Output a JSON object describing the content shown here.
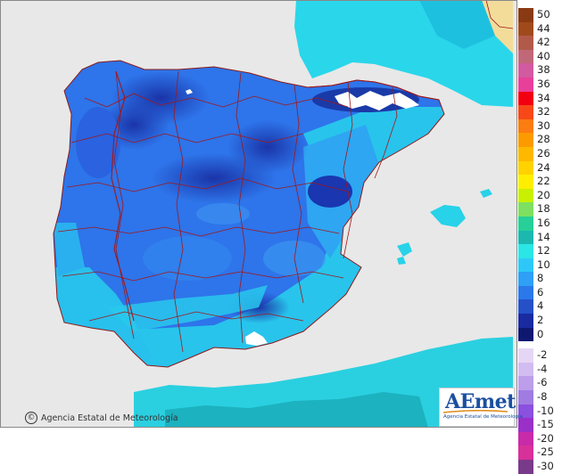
{
  "legend": {
    "positive": [
      {
        "label": "50",
        "color": "#8a3a12"
      },
      {
        "label": "44",
        "color": "#a04a1c"
      },
      {
        "label": "42",
        "color": "#b25a4a"
      },
      {
        "label": "40",
        "color": "#c06878"
      },
      {
        "label": "38",
        "color": "#d25aa0"
      },
      {
        "label": "36",
        "color": "#e8409a"
      },
      {
        "label": "34",
        "color": "#f20010"
      },
      {
        "label": "32",
        "color": "#f84818"
      },
      {
        "label": "30",
        "color": "#fb7c10"
      },
      {
        "label": "28",
        "color": "#fd9a00"
      },
      {
        "label": "26",
        "color": "#ffb800"
      },
      {
        "label": "24",
        "color": "#ffd200"
      },
      {
        "label": "22",
        "color": "#ffee00"
      },
      {
        "label": "20",
        "color": "#c8f000"
      },
      {
        "label": "18",
        "color": "#7ee060"
      },
      {
        "label": "16",
        "color": "#26d098"
      },
      {
        "label": "14",
        "color": "#1cb8b0"
      },
      {
        "label": "12",
        "color": "#2ae6e6"
      },
      {
        "label": "10",
        "color": "#2ec8f8"
      },
      {
        "label": "8",
        "color": "#2ea0f6"
      },
      {
        "label": "6",
        "color": "#2a78ea"
      },
      {
        "label": "4",
        "color": "#2550c8"
      },
      {
        "label": "2",
        "color": "#1a2aa0"
      },
      {
        "label": "0",
        "color": "#0e1870"
      }
    ],
    "negative": [
      {
        "label": "-2",
        "color": "#e6d6f6"
      },
      {
        "label": "-4",
        "color": "#d2bcf0"
      },
      {
        "label": "-6",
        "color": "#bc9eea"
      },
      {
        "label": "-8",
        "color": "#a07ce2"
      },
      {
        "label": "-10",
        "color": "#8a50de"
      },
      {
        "label": "-15",
        "color": "#9a30c8"
      },
      {
        "label": "-20",
        "color": "#c82aa8"
      },
      {
        "label": "-25",
        "color": "#d8309a"
      },
      {
        "label": "-30",
        "color": "#7a3a8a"
      }
    ]
  },
  "credit": {
    "symbol": "©",
    "text": "Agencia Estatal de Meteorología"
  },
  "logo": {
    "word": "AEmet",
    "sub": "Agencia Estatal de Meteorología"
  },
  "colors": {
    "sea": "#e8e8e8",
    "land_outside": "#f0f0f0",
    "border_lines": "#a01818",
    "cold": "#1e4fd0",
    "mid": "#2e7ef0",
    "warm": "#22c8e8",
    "snow": "#ffffff"
  }
}
